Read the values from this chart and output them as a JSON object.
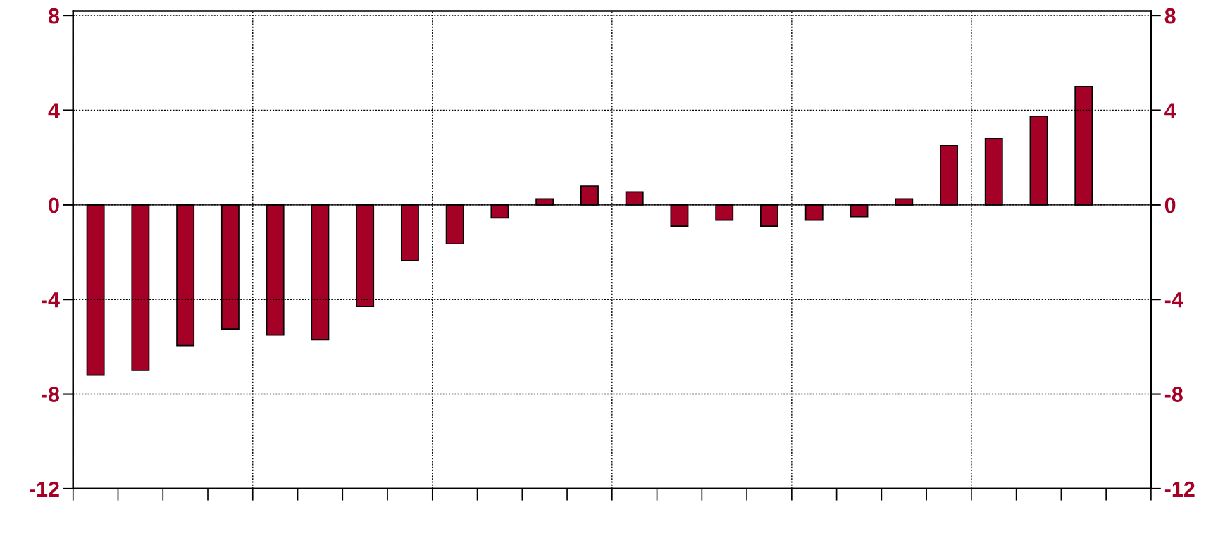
{
  "chart_data": {
    "type": "bar",
    "categories": [
      null,
      null,
      null,
      null,
      null,
      null,
      null,
      null,
      null,
      null,
      null,
      null,
      null,
      null,
      null,
      null,
      null,
      null,
      null,
      null,
      null,
      null,
      null,
      null
    ],
    "series": [
      {
        "color": "#a50026",
        "values": [
          -7.2,
          -7.0,
          -5.95,
          -5.25,
          -5.5,
          -5.7,
          -4.3,
          -2.35,
          -1.65,
          -0.55,
          0.25,
          0.8,
          0.55,
          -0.9,
          -0.65,
          -0.9,
          -0.65,
          -0.5,
          0.25,
          2.5,
          2.8,
          3.75,
          5.0,
          null
        ]
      }
    ],
    "ylim": [
      -12,
      8.2
    ],
    "yticks": [
      -12,
      -8,
      -4,
      0,
      4,
      8
    ],
    "y2lim": [
      -12,
      8.2
    ],
    "y2ticks": [
      -12,
      -8,
      -4,
      0,
      4,
      8
    ],
    "grid": true
  }
}
